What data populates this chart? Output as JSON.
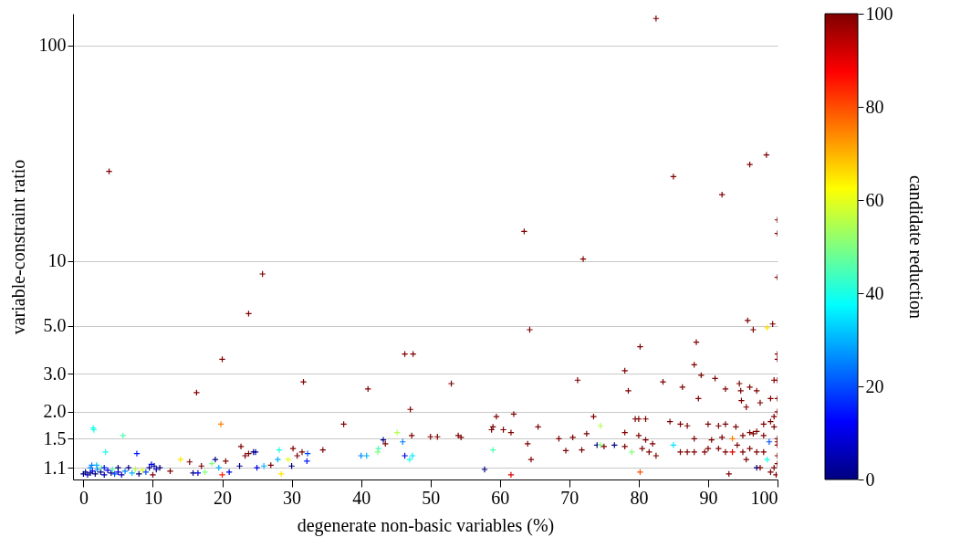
{
  "chart_data": {
    "type": "scatter",
    "xlabel": "degenerate non-basic variables (%)",
    "ylabel": "variable-constraint ratio",
    "clabel": "candidate reduction",
    "xlim": [
      -1.5,
      100
    ],
    "xticks": [
      0,
      10,
      20,
      30,
      40,
      50,
      60,
      70,
      80,
      90,
      100
    ],
    "ylim": [
      0.97,
      140
    ],
    "yticks": [
      1.1,
      1.5,
      {
        "value": 2,
        "label": "2.0"
      },
      {
        "value": 3,
        "label": "3.0"
      },
      {
        "value": 5,
        "label": "5.0"
      },
      10,
      100
    ],
    "log": true,
    "grid": "y",
    "marker": "cross",
    "clim": [
      0,
      100
    ],
    "cticks": [
      0,
      20,
      40,
      60,
      80,
      100
    ],
    "x": [
      82.5,
      3.7,
      98.4,
      96,
      85,
      92,
      100,
      100,
      63.5,
      72,
      25.8,
      100,
      23.8,
      95.7,
      99.3,
      98.5,
      96.5,
      64.3,
      88.3,
      80.2,
      46.3,
      47.5,
      20,
      100,
      100,
      78,
      31.7,
      53,
      71.2,
      83.5,
      88,
      89,
      91,
      86.3,
      99.5,
      100,
      16.3,
      41,
      78.5,
      92.5,
      94.5,
      94.7,
      96,
      97,
      19.8,
      37.5,
      47.1,
      59.5,
      62,
      73.5,
      88.6,
      94.8,
      95.5,
      97.5,
      99,
      100,
      100,
      99.5,
      1.5,
      1.4,
      5.7,
      45.2,
      65.5,
      59,
      60.5,
      61.6,
      58.8,
      74.5,
      79.5,
      80,
      81,
      84.5,
      86,
      87,
      90,
      91.5,
      92.5,
      94,
      96,
      97,
      98,
      99,
      99.5,
      47.3,
      50,
      51,
      54,
      54.4,
      68.5,
      70.5,
      72.5,
      78,
      80,
      81,
      82,
      88,
      90.5,
      92,
      93.5,
      95,
      96.5,
      98,
      100,
      100,
      43.2,
      43.5,
      46,
      42.5,
      42.4,
      46.3,
      47.4,
      47,
      40,
      40.8,
      3.2,
      7.7,
      32.3,
      30.2,
      31.5,
      34.5,
      22.7,
      24.5,
      24.8,
      23.8,
      23.3,
      28.2,
      28,
      29.5,
      30.8,
      32.2,
      59,
      57.8,
      61.6,
      64,
      64.5,
      69.5,
      71.8,
      74,
      74.5,
      75,
      76.5,
      78,
      79,
      80.2,
      80.5,
      81.5,
      82.5,
      85,
      86,
      87,
      88,
      89.5,
      90,
      91.5,
      92.5,
      93.5,
      94.2,
      95,
      96,
      97,
      98,
      98.5,
      95.5,
      97,
      97.5,
      93,
      99,
      99.5,
      100,
      99.8,
      100,
      100,
      98.8,
      0,
      0.3,
      0.6,
      1,
      1.3,
      1.7,
      2,
      2.5,
      3,
      3.5,
      4,
      4.5,
      5,
      5.5,
      6,
      6.5,
      7,
      7.5,
      8,
      8.5,
      9,
      9.5,
      10,
      10.5,
      11,
      12.5,
      14,
      15.3,
      15.8,
      16.5,
      17,
      17.5,
      18.5,
      19,
      19.5,
      20,
      20.5,
      21,
      22.5,
      25,
      26,
      27,
      28.5,
      30,
      1.2,
      1.9,
      2.6,
      3,
      4.2,
      5,
      9.8,
      10.2,
      1
    ],
    "values": [
      133,
      26,
      31,
      28,
      24.6,
      20.3,
      15.5,
      13.4,
      13.7,
      10.2,
      8.7,
      8.4,
      5.7,
      5.3,
      5.1,
      4.9,
      4.8,
      4.8,
      4.2,
      4.0,
      3.7,
      3.7,
      3.5,
      3.7,
      3.5,
      3.1,
      2.75,
      2.7,
      2.8,
      2.75,
      3.3,
      2.95,
      2.85,
      2.6,
      2.8,
      2.8,
      2.45,
      2.55,
      2.5,
      2.55,
      2.7,
      2.5,
      2.6,
      2.5,
      1.75,
      1.75,
      2.05,
      1.9,
      1.95,
      1.9,
      2.3,
      2.25,
      2.1,
      2.2,
      2.3,
      2.3,
      2.0,
      1.9,
      1.65,
      1.68,
      1.55,
      1.6,
      1.7,
      1.7,
      1.65,
      1.6,
      1.65,
      1.72,
      1.85,
      1.85,
      1.85,
      1.8,
      1.75,
      1.72,
      1.75,
      1.72,
      1.75,
      1.7,
      1.6,
      1.62,
      1.75,
      1.8,
      1.7,
      1.55,
      1.53,
      1.53,
      1.55,
      1.52,
      1.5,
      1.52,
      1.58,
      1.6,
      1.55,
      1.48,
      1.42,
      1.5,
      1.48,
      1.52,
      1.5,
      1.55,
      1.58,
      1.55,
      1.5,
      1.45,
      1.48,
      1.42,
      1.45,
      1.35,
      1.3,
      1.25,
      1.25,
      1.2,
      1.25,
      1.25,
      1.3,
      1.28,
      1.28,
      1.35,
      1.3,
      1.33,
      1.38,
      1.3,
      1.3,
      1.28,
      1.25,
      1.33,
      1.2,
      1.2,
      1.25,
      1.18,
      1.33,
      1.08,
      1.02,
      1.42,
      1.2,
      1.32,
      1.33,
      1.4,
      1.4,
      1.38,
      1.4,
      1.38,
      1.3,
      1.05,
      1.35,
      1.3,
      1.25,
      1.4,
      1.3,
      1.3,
      1.3,
      1.3,
      1.35,
      1.35,
      1.3,
      1.3,
      1.4,
      1.3,
      1.35,
      1.3,
      1.3,
      1.2,
      1.2,
      1.1,
      1.1,
      1.03,
      1.05,
      1.1,
      1.15,
      1.02,
      1.25,
      1.4,
      1.45,
      1.03,
      1.05,
      1.02,
      1.04,
      1.06,
      1.03,
      1.08,
      1.05,
      1.02,
      1.07,
      1.04,
      1.03,
      1.05,
      1.02,
      1.06,
      1.1,
      1.04,
      1.08,
      1.03,
      1.07,
      1.05,
      1.1,
      1.02,
      1.08,
      1.1,
      1.06,
      1.2,
      1.17,
      1.04,
      1.04,
      1.12,
      1.05,
      1.15,
      1.2,
      1.1,
      1.02,
      1.18,
      1.05,
      1.12,
      1.1,
      1.12,
      1.13,
      1.03,
      1.12,
      1.13,
      1.13,
      1.1,
      1.1,
      1.08,
      1.1,
      1.14,
      1.12,
      1.1
    ],
    "cvalues": [
      100,
      100,
      100,
      100,
      100,
      100,
      100,
      100,
      100,
      100,
      100,
      100,
      100,
      100,
      100,
      65,
      100,
      100,
      100,
      100,
      100,
      100,
      100,
      100,
      100,
      100,
      100,
      100,
      100,
      100,
      100,
      100,
      100,
      100,
      100,
      100,
      100,
      100,
      100,
      100,
      100,
      100,
      100,
      100,
      75,
      100,
      100,
      100,
      100,
      100,
      100,
      100,
      100,
      100,
      100,
      100,
      100,
      100,
      40,
      40,
      45,
      55,
      100,
      100,
      100,
      100,
      100,
      55,
      100,
      100,
      100,
      100,
      100,
      100,
      100,
      100,
      100,
      100,
      100,
      100,
      100,
      100,
      100,
      100,
      100,
      100,
      100,
      100,
      100,
      100,
      100,
      100,
      100,
      100,
      100,
      100,
      100,
      100,
      75,
      100,
      100,
      100,
      100,
      100,
      0,
      100,
      25,
      45,
      50,
      10,
      35,
      40,
      25,
      30,
      40,
      15,
      20,
      100,
      100,
      100,
      100,
      0,
      5,
      100,
      100,
      40,
      30,
      60,
      100,
      15,
      45,
      0,
      90,
      100,
      100,
      100,
      100,
      0,
      50,
      100,
      0,
      100,
      50,
      80,
      100,
      100,
      100,
      35,
      100,
      100,
      100,
      100,
      100,
      100,
      100,
      90,
      100,
      100,
      100,
      100,
      100,
      40,
      100,
      0,
      100,
      100,
      100,
      100,
      100,
      100,
      100,
      100,
      20,
      0,
      0,
      5,
      0,
      10,
      0,
      25,
      0,
      5,
      10,
      0,
      20,
      10,
      5,
      25,
      0,
      30,
      55,
      0,
      60,
      20,
      0,
      100,
      5,
      0,
      100,
      65,
      100,
      0,
      10,
      100,
      50,
      50,
      0,
      30,
      85,
      100,
      10,
      0,
      10,
      30,
      100,
      65,
      0,
      25,
      30,
      50,
      15,
      45,
      0,
      10,
      5,
      25
    ]
  }
}
